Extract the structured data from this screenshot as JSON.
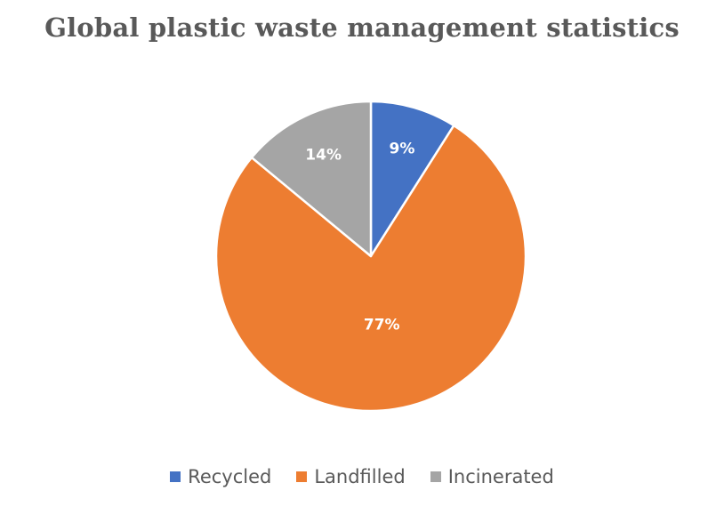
{
  "chart_data": {
    "type": "pie",
    "title": "Global plastic waste management statistics",
    "categories": [
      "Recycled",
      "Landfilled",
      "Incinerated"
    ],
    "values": [
      9,
      77,
      14
    ],
    "data_labels": [
      "9%",
      "77%",
      "14%"
    ],
    "colors": [
      "#4472c4",
      "#ed7d31",
      "#a5a5a5"
    ],
    "legend_position": "bottom",
    "start_angle_deg": 0,
    "direction": "clockwise"
  }
}
